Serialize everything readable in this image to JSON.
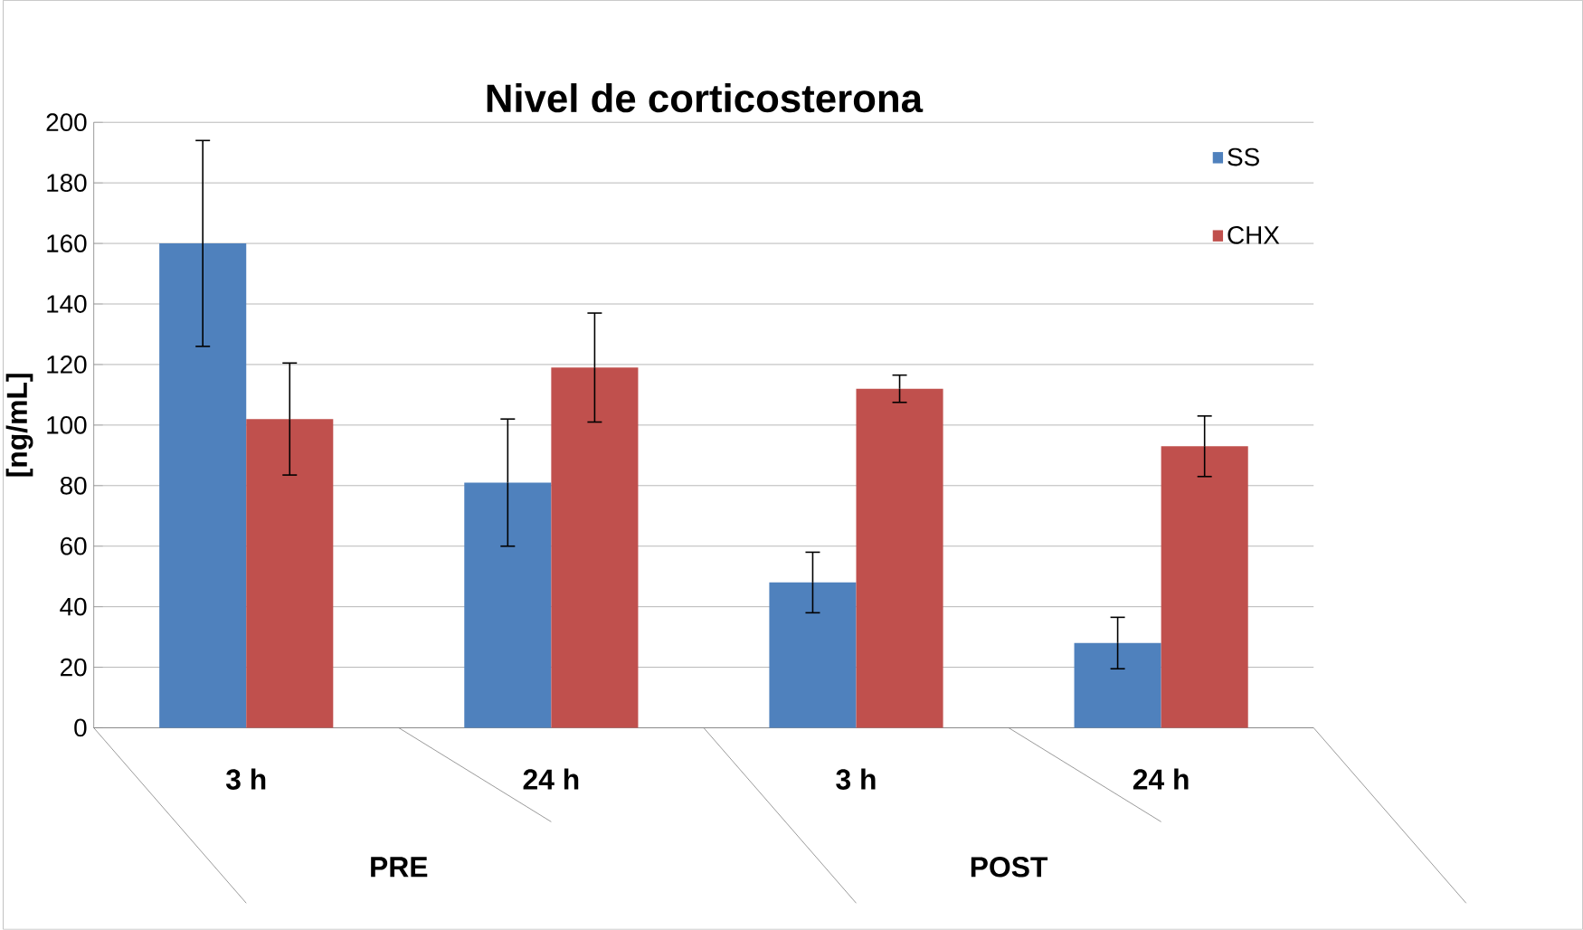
{
  "chart_data": {
    "type": "bar",
    "title": "Nivel de corticosterona",
    "ylabel": "[ng/mL]",
    "categories": [
      "3 h",
      "24 h",
      "3 h",
      "24 h"
    ],
    "annotations": [
      "PRE",
      "POST"
    ],
    "series": [
      {
        "name": "SS",
        "color": "#4f81bd",
        "values": [
          160,
          81,
          48,
          28
        ],
        "errors": [
          34,
          21,
          10,
          8.5
        ]
      },
      {
        "name": "CHX",
        "color": "#c0504d",
        "values": [
          102,
          119,
          112,
          93
        ],
        "errors": [
          18.5,
          18,
          4.5,
          10
        ]
      }
    ],
    "ylim": [
      0,
      200
    ],
    "yticks": [
      0,
      20,
      40,
      60,
      80,
      100,
      120,
      140,
      160,
      180,
      200
    ],
    "grid": "y",
    "legend": "top right"
  }
}
